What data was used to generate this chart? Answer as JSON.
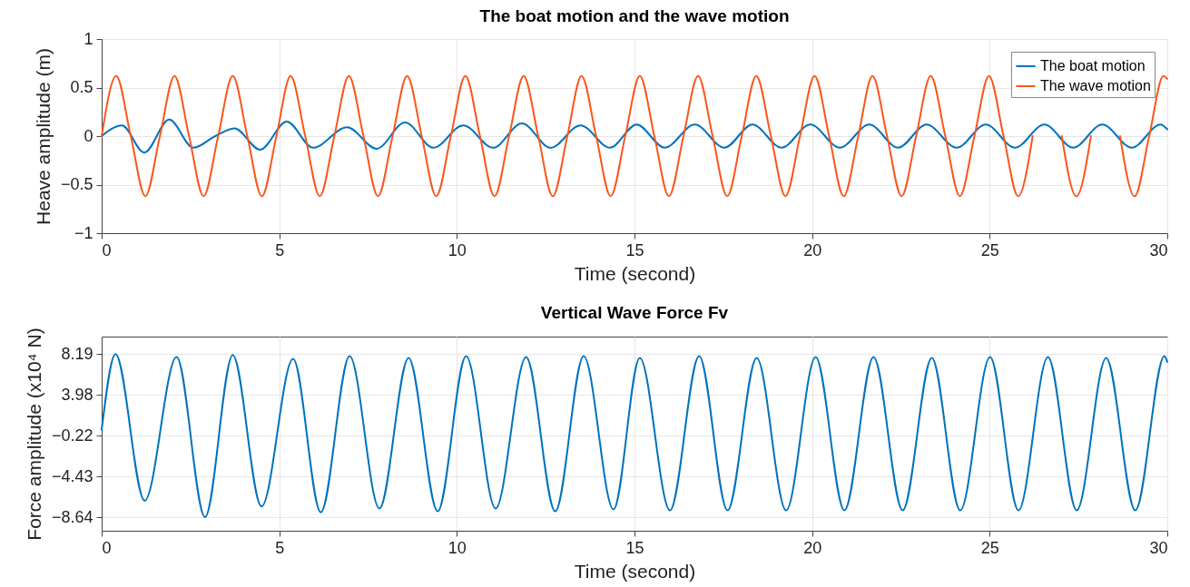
{
  "chart_data": [
    {
      "type": "line",
      "title": "The boat motion and the wave motion",
      "xlabel": "Time (second)",
      "ylabel": "Heave amplitude (m)",
      "xlim": [
        0,
        30
      ],
      "ylim": [
        -1,
        1
      ],
      "xticks": [
        0,
        5,
        10,
        15,
        20,
        25,
        30
      ],
      "yticks": [
        -1,
        -0.5,
        0,
        0.5,
        1
      ],
      "grid": true,
      "legend": "top right",
      "line_style": "solid",
      "series": [
        {
          "name": "The boat motion",
          "color": "#0072bd",
          "x": [
            0,
            0.57,
            1.2,
            1.9,
            2.58,
            3.2,
            3.74,
            4.46,
            5.21,
            5.95,
            6.91,
            7.74,
            8.54,
            9.34,
            10.18,
            11.02,
            11.83,
            12.64,
            13.48,
            14.31,
            15.06,
            15.85,
            16.7,
            17.53,
            18.32,
            19.14,
            19.95,
            20.78,
            21.61,
            22.42,
            23.22,
            24.07,
            24.89,
            25.71,
            26.54,
            27.35,
            28.17,
            29.0,
            29.81,
            30
          ],
          "values": [
            0,
            0.11,
            -0.17,
            0.17,
            -0.12,
            0,
            0.08,
            -0.14,
            0.15,
            -0.12,
            0.09,
            -0.13,
            0.14,
            -0.12,
            0.11,
            -0.12,
            0.13,
            -0.12,
            0.11,
            -0.12,
            0.12,
            -0.12,
            0.12,
            -0.12,
            0.12,
            -0.12,
            0.12,
            -0.12,
            0.12,
            -0.12,
            0.12,
            -0.12,
            0.12,
            -0.12,
            0.12,
            -0.12,
            0.12,
            -0.12,
            0.12,
            0.07
          ]
        },
        {
          "name": "The wave motion",
          "color": "#f9571d",
          "x": [
            0,
            0.41,
            0.82,
            1.23,
            1.64,
            2.05,
            2.46,
            2.87,
            3.28,
            3.69,
            4.1,
            4.51,
            4.92,
            5.32,
            5.73,
            6.14,
            6.55,
            6.96,
            7.37,
            7.78,
            8.19,
            8.6,
            9.01,
            9.42,
            9.83,
            10.24,
            10.65,
            11.06,
            11.47,
            11.88,
            12.29,
            12.7,
            13.11,
            13.51,
            13.92,
            14.33,
            14.74,
            15.15,
            15.56,
            15.97,
            16.38,
            16.79,
            17.2,
            17.61,
            18.02,
            18.43,
            18.84,
            19.25,
            19.66,
            20.07,
            20.48,
            20.89,
            21.3,
            21.7,
            22.11,
            22.52,
            22.93,
            23.34,
            23.75,
            24.16,
            24.57,
            24.98,
            25.39,
            25.8,
            26.21,
            26.62,
            27.03,
            27.44,
            27.85,
            28.26,
            28.67,
            29.08,
            29.49,
            29.89,
            30
          ],
          "values": [
            0,
            0.62,
            0,
            -0.62,
            0,
            0.62,
            0,
            -0.62,
            0,
            0.62,
            0,
            -0.62,
            0,
            0.62,
            0,
            -0.62,
            0,
            0.62,
            0,
            -0.62,
            0,
            0.62,
            0,
            -0.62,
            0,
            0.62,
            0,
            -0.62,
            0,
            0.62,
            0,
            -0.62,
            0,
            0.62,
            0,
            -0.62,
            0,
            0.62,
            0,
            -0.62,
            0,
            0.62,
            0,
            -0.62,
            0,
            0.62,
            0,
            -0.62,
            0,
            0.62,
            0,
            -0.62,
            0,
            0.62,
            0,
            -0.62,
            0,
            0.62,
            0,
            -0.62,
            0,
            0.62,
            0,
            -0.62,
            0,
            null,
            0,
            -0.62,
            0,
            null,
            0,
            -0.62,
            0,
            0.62,
            0.59
          ]
        }
      ]
    },
    {
      "type": "line",
      "title": "Vertical Wave Force Fv",
      "xlabel": "Time (second)",
      "ylabel": "Force amplitude (x10⁴ N)",
      "xlim": [
        0,
        30
      ],
      "ylim": [
        -10,
        10
      ],
      "xticks": [
        0,
        5,
        10,
        15,
        20,
        25,
        30
      ],
      "yticks": [
        -8.64,
        -4.43,
        -0.22,
        3.98,
        8.19
      ],
      "grid": true,
      "line_style": "solid",
      "series": [
        {
          "color": "#0072bd",
          "x": [
            0,
            0.39,
            1.21,
            2.11,
            2.91,
            3.69,
            4.5,
            5.39,
            6.17,
            6.98,
            7.82,
            8.64,
            9.46,
            10.26,
            11.09,
            11.95,
            12.77,
            13.57,
            14.41,
            15.15,
            16.0,
            16.82,
            17.62,
            18.44,
            19.27,
            20.1,
            20.91,
            21.73,
            22.55,
            23.37,
            24.17,
            25.01,
            25.81,
            26.64,
            27.45,
            28.28,
            29.1,
            29.92,
            30
          ],
          "values": [
            0.4,
            8.2,
            -6.9,
            7.9,
            -8.6,
            8.1,
            -7.5,
            7.7,
            -8.1,
            8.0,
            -7.7,
            7.8,
            -8.0,
            8.0,
            -7.7,
            7.9,
            -8.0,
            8.0,
            -7.8,
            7.8,
            -7.9,
            8.0,
            -7.9,
            7.8,
            -7.9,
            7.9,
            -7.9,
            7.9,
            -7.9,
            7.8,
            -7.9,
            7.9,
            -7.9,
            7.9,
            -7.9,
            7.8,
            -7.9,
            8.0,
            7.4
          ]
        }
      ]
    }
  ]
}
